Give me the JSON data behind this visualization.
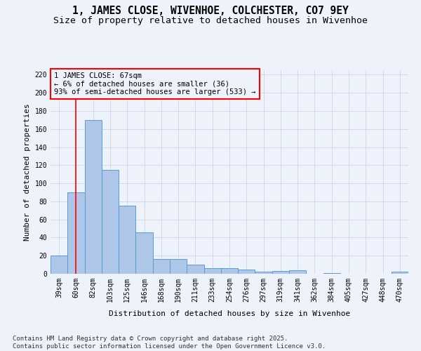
{
  "title": "1, JAMES CLOSE, WIVENHOE, COLCHESTER, CO7 9EY",
  "subtitle": "Size of property relative to detached houses in Wivenhoe",
  "xlabel": "Distribution of detached houses by size in Wivenhoe",
  "ylabel": "Number of detached properties",
  "categories": [
    "39sqm",
    "60sqm",
    "82sqm",
    "103sqm",
    "125sqm",
    "146sqm",
    "168sqm",
    "190sqm",
    "211sqm",
    "233sqm",
    "254sqm",
    "276sqm",
    "297sqm",
    "319sqm",
    "341sqm",
    "362sqm",
    "384sqm",
    "405sqm",
    "427sqm",
    "448sqm",
    "470sqm"
  ],
  "values": [
    20,
    90,
    170,
    115,
    75,
    46,
    16,
    16,
    10,
    6,
    6,
    5,
    2,
    3,
    4,
    0,
    1,
    0,
    0,
    0,
    2
  ],
  "bar_color": "#aec6e8",
  "bar_edge_color": "#5b9bd5",
  "vline_x": 1,
  "vline_color": "red",
  "ylim": [
    0,
    225
  ],
  "yticks": [
    0,
    20,
    40,
    60,
    80,
    100,
    120,
    140,
    160,
    180,
    200,
    220
  ],
  "annotation_title": "1 JAMES CLOSE: 67sqm",
  "annotation_line1": "← 6% of detached houses are smaller (36)",
  "annotation_line2": "93% of semi-detached houses are larger (533) →",
  "annotation_box_color": "red",
  "footer_line1": "Contains HM Land Registry data © Crown copyright and database right 2025.",
  "footer_line2": "Contains public sector information licensed under the Open Government Licence v3.0.",
  "bg_color": "#eef2fb",
  "grid_color": "#c8cfe0",
  "title_fontsize": 10.5,
  "subtitle_fontsize": 9.5,
  "label_fontsize": 8,
  "tick_fontsize": 7,
  "annotation_fontsize": 7.5,
  "footer_fontsize": 6.5
}
